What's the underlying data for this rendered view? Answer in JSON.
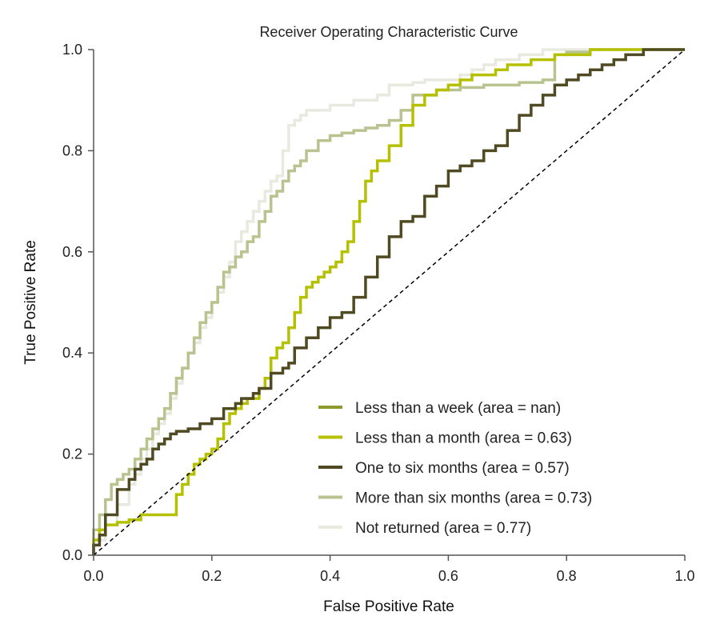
{
  "chart_data": {
    "type": "line",
    "title": "Receiver Operating Characteristic Curve",
    "xlabel": "False Positive Rate",
    "ylabel": "True Positive Rate",
    "xlim": [
      0.0,
      1.0
    ],
    "ylim": [
      0.0,
      1.0
    ],
    "xticks": [
      "0.0",
      "0.2",
      "0.4",
      "0.6",
      "0.8",
      "1.0"
    ],
    "yticks": [
      "0.0",
      "0.2",
      "0.4",
      "0.6",
      "0.8",
      "1.0"
    ],
    "grid": false,
    "legend_position": "lower-right",
    "diagonal_reference": {
      "x": [
        0,
        1
      ],
      "y": [
        0,
        1
      ],
      "style": "dashed",
      "color": "#000000"
    },
    "series": [
      {
        "name": "Less than a week (area = nan)",
        "color": "#8f9a2e",
        "x": [],
        "y": []
      },
      {
        "name": "Less than a month (area = 0.63)",
        "color": "#b5c000",
        "x": [
          0.0,
          0.01,
          0.02,
          0.04,
          0.06,
          0.08,
          0.1,
          0.12,
          0.14,
          0.15,
          0.16,
          0.17,
          0.18,
          0.19,
          0.2,
          0.21,
          0.22,
          0.23,
          0.24,
          0.25,
          0.26,
          0.27,
          0.28,
          0.29,
          0.3,
          0.31,
          0.32,
          0.33,
          0.34,
          0.35,
          0.36,
          0.37,
          0.38,
          0.39,
          0.4,
          0.41,
          0.42,
          0.43,
          0.44,
          0.45,
          0.46,
          0.47,
          0.48,
          0.5,
          0.52,
          0.54,
          0.56,
          0.58,
          0.6,
          0.62,
          0.64,
          0.66,
          0.68,
          0.7,
          0.72,
          0.74,
          0.76,
          0.78,
          0.8,
          0.82,
          0.84,
          0.86,
          0.88,
          0.9,
          1.0
        ],
        "y": [
          0.0,
          0.03,
          0.05,
          0.06,
          0.065,
          0.07,
          0.08,
          0.08,
          0.08,
          0.12,
          0.14,
          0.16,
          0.18,
          0.19,
          0.2,
          0.21,
          0.23,
          0.26,
          0.28,
          0.29,
          0.3,
          0.31,
          0.31,
          0.33,
          0.35,
          0.39,
          0.41,
          0.42,
          0.45,
          0.48,
          0.51,
          0.53,
          0.54,
          0.55,
          0.56,
          0.57,
          0.58,
          0.6,
          0.62,
          0.66,
          0.7,
          0.74,
          0.76,
          0.78,
          0.81,
          0.85,
          0.89,
          0.91,
          0.92,
          0.93,
          0.94,
          0.95,
          0.95,
          0.96,
          0.97,
          0.97,
          0.98,
          0.98,
          0.99,
          0.99,
          0.99,
          1.0,
          1.0,
          1.0,
          1.0
        ]
      },
      {
        "name": "One to six months (area = 0.57)",
        "color": "#4f4a22",
        "x": [
          0.0,
          0.01,
          0.02,
          0.04,
          0.06,
          0.07,
          0.08,
          0.09,
          0.1,
          0.11,
          0.12,
          0.13,
          0.14,
          0.16,
          0.18,
          0.2,
          0.22,
          0.24,
          0.25,
          0.26,
          0.27,
          0.28,
          0.3,
          0.32,
          0.33,
          0.34,
          0.36,
          0.38,
          0.4,
          0.42,
          0.44,
          0.46,
          0.48,
          0.5,
          0.52,
          0.54,
          0.56,
          0.58,
          0.6,
          0.62,
          0.64,
          0.66,
          0.68,
          0.7,
          0.72,
          0.74,
          0.76,
          0.78,
          0.8,
          0.82,
          0.84,
          0.86,
          0.88,
          0.9,
          0.93,
          0.96,
          1.0
        ],
        "y": [
          0.0,
          0.02,
          0.04,
          0.08,
          0.13,
          0.15,
          0.17,
          0.18,
          0.19,
          0.21,
          0.22,
          0.23,
          0.24,
          0.245,
          0.25,
          0.26,
          0.27,
          0.29,
          0.3,
          0.31,
          0.31,
          0.32,
          0.33,
          0.36,
          0.37,
          0.38,
          0.41,
          0.43,
          0.45,
          0.47,
          0.48,
          0.51,
          0.55,
          0.59,
          0.63,
          0.66,
          0.67,
          0.71,
          0.73,
          0.76,
          0.77,
          0.78,
          0.8,
          0.81,
          0.84,
          0.87,
          0.89,
          0.91,
          0.93,
          0.94,
          0.95,
          0.96,
          0.97,
          0.98,
          0.99,
          1.0,
          1.0
        ]
      },
      {
        "name": "More than six months (area = 0.73)",
        "color": "#b9c38f",
        "x": [
          0.0,
          0.01,
          0.02,
          0.03,
          0.04,
          0.05,
          0.06,
          0.07,
          0.08,
          0.09,
          0.1,
          0.11,
          0.12,
          0.13,
          0.14,
          0.15,
          0.16,
          0.17,
          0.18,
          0.19,
          0.2,
          0.21,
          0.22,
          0.23,
          0.24,
          0.25,
          0.26,
          0.27,
          0.28,
          0.29,
          0.3,
          0.31,
          0.32,
          0.33,
          0.34,
          0.35,
          0.36,
          0.38,
          0.4,
          0.42,
          0.44,
          0.46,
          0.48,
          0.5,
          0.52,
          0.54,
          0.56,
          0.58,
          0.6,
          0.62,
          0.64,
          0.66,
          0.68,
          0.7,
          0.72,
          0.74,
          0.76,
          0.78,
          0.78,
          0.8,
          0.84,
          0.88,
          0.92,
          1.0
        ],
        "y": [
          0.0,
          0.05,
          0.08,
          0.11,
          0.14,
          0.15,
          0.16,
          0.17,
          0.19,
          0.21,
          0.23,
          0.25,
          0.27,
          0.29,
          0.32,
          0.35,
          0.37,
          0.4,
          0.43,
          0.46,
          0.48,
          0.5,
          0.53,
          0.56,
          0.57,
          0.59,
          0.6,
          0.62,
          0.63,
          0.66,
          0.68,
          0.71,
          0.72,
          0.74,
          0.76,
          0.77,
          0.78,
          0.8,
          0.82,
          0.83,
          0.835,
          0.84,
          0.845,
          0.85,
          0.86,
          0.88,
          0.91,
          0.91,
          0.92,
          0.92,
          0.925,
          0.925,
          0.93,
          0.93,
          0.93,
          0.935,
          0.935,
          0.94,
          0.98,
          0.99,
          0.995,
          1.0,
          1.0,
          1.0
        ]
      },
      {
        "name": "Not returned (area = 0.77)",
        "color": "#e8e9df",
        "x": [
          0.0,
          0.02,
          0.04,
          0.06,
          0.07,
          0.08,
          0.09,
          0.1,
          0.11,
          0.12,
          0.13,
          0.14,
          0.15,
          0.16,
          0.17,
          0.18,
          0.19,
          0.2,
          0.21,
          0.22,
          0.23,
          0.24,
          0.25,
          0.26,
          0.27,
          0.28,
          0.29,
          0.3,
          0.31,
          0.32,
          0.33,
          0.34,
          0.35,
          0.36,
          0.38,
          0.4,
          0.42,
          0.44,
          0.46,
          0.48,
          0.5,
          0.52,
          0.54,
          0.56,
          0.58,
          0.6,
          0.62,
          0.64,
          0.66,
          0.68,
          0.7,
          0.72,
          0.74,
          0.76,
          0.8,
          0.85,
          0.9,
          1.0
        ],
        "y": [
          0.0,
          0.03,
          0.06,
          0.1,
          0.14,
          0.16,
          0.19,
          0.21,
          0.24,
          0.26,
          0.28,
          0.31,
          0.34,
          0.37,
          0.4,
          0.42,
          0.45,
          0.47,
          0.5,
          0.52,
          0.55,
          0.58,
          0.62,
          0.64,
          0.66,
          0.68,
          0.7,
          0.72,
          0.74,
          0.75,
          0.8,
          0.85,
          0.86,
          0.87,
          0.88,
          0.88,
          0.89,
          0.89,
          0.9,
          0.9,
          0.91,
          0.93,
          0.93,
          0.935,
          0.94,
          0.94,
          0.94,
          0.95,
          0.96,
          0.97,
          0.98,
          0.98,
          0.99,
          0.99,
          1.0,
          1.0,
          1.0,
          1.0
        ]
      }
    ]
  }
}
